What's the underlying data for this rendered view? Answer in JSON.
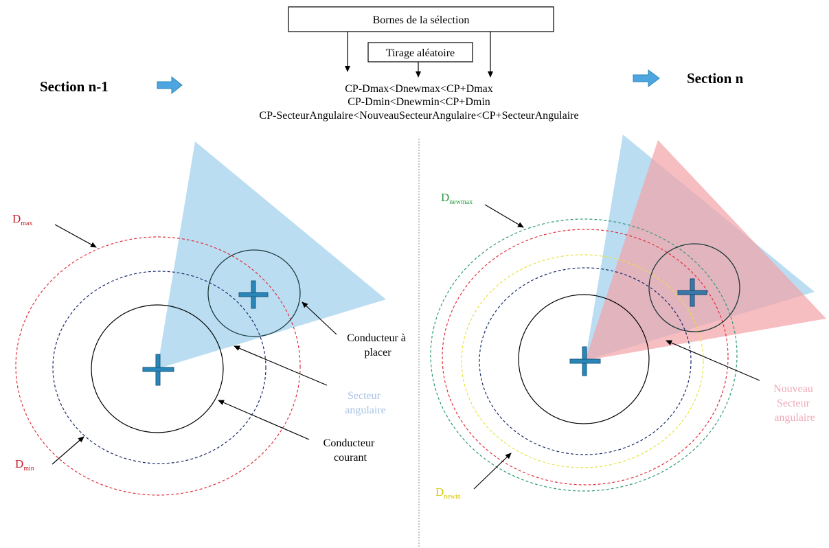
{
  "header": {
    "bounds_box": "Bornes de la sélection",
    "random_box": "Tirage aléatoire",
    "constraints": [
      "CP-Dmax<Dnewmax<CP+Dmax",
      "CP-Dmin<Dnewmin<CP+Dmin",
      "CP-SecteurAngulaire<NouveauSecteurAngulaire<CP+SecteurAngulaire"
    ]
  },
  "left": {
    "title": "Section n-1",
    "dmax": {
      "main": "D",
      "sub": "max"
    },
    "dmin": {
      "main": "D",
      "sub": "min"
    },
    "conductor_to_place": [
      "Conducteur à",
      "placer"
    ],
    "angular_sector": [
      "Secteur",
      "angulaire"
    ],
    "current_conductor": [
      "Conducteur",
      "courant"
    ]
  },
  "right": {
    "title": "Section n",
    "dnewmax": {
      "main": "D",
      "sub": "newmax"
    },
    "dnewmin": {
      "main": "D",
      "sub": "newin"
    },
    "new_angular_sector": [
      "Nouveau",
      "Secteur",
      "angulaire"
    ]
  },
  "colors": {
    "arrow_fill": "#4da6e0",
    "sector_blue": "#a9d4ef",
    "sector_red": "#f4a3a8",
    "cross": "#2a86b8",
    "red_dash": "#e0303a",
    "navy_dash": "#1a2a6a",
    "green_dash": "#2e9a72",
    "yellow_dash": "#e8e240",
    "label_blue": "#a9c3e6",
    "label_pink": "#f0a8b8",
    "label_red": "#c0202a",
    "label_green": "#2a9a40",
    "label_yellow": "#d8c800"
  }
}
